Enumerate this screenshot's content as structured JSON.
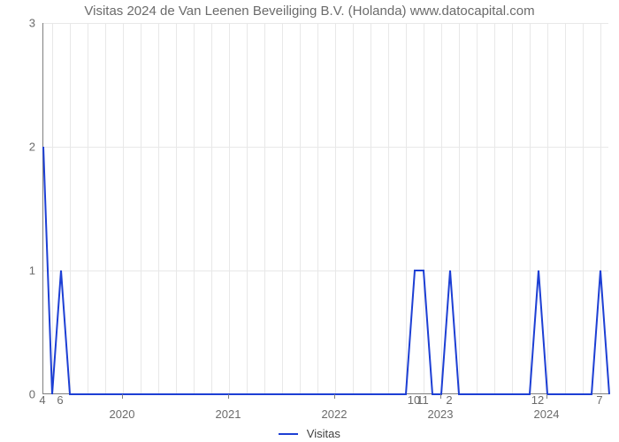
{
  "chart": {
    "type": "line",
    "title": "Visitas 2024 de Van Leenen Beveiliging B.V. (Holanda) www.datocapital.com",
    "title_fontsize": 15,
    "title_color": "#6b6b6b",
    "background_color": "#ffffff",
    "grid_color": "#e8e8e8",
    "axis_color": "#808080",
    "line_color": "#1d3fd4",
    "line_width": 2,
    "legend_label": "Visitas",
    "y": {
      "min": 0,
      "max": 3,
      "ticks": [
        0,
        1,
        2,
        3
      ],
      "label_fontsize": 13,
      "label_color": "#6b6b6b"
    },
    "x": {
      "min_month_index": 3,
      "max_month_index": 67,
      "year_ticks": [
        {
          "label": "2020",
          "month_index": 12
        },
        {
          "label": "2021",
          "month_index": 24
        },
        {
          "label": "2022",
          "month_index": 36
        },
        {
          "label": "2023",
          "month_index": 48
        },
        {
          "label": "2024",
          "month_index": 60
        }
      ],
      "month_labels": [
        {
          "label": "4",
          "month_index": 3
        },
        {
          "label": "6",
          "month_index": 5
        },
        {
          "label": "10",
          "month_index": 45
        },
        {
          "label": "11",
          "month_index": 46
        },
        {
          "label": "2",
          "month_index": 49
        },
        {
          "label": "12",
          "month_index": 59
        },
        {
          "label": "7",
          "month_index": 66
        }
      ],
      "minor_grid_step_months": 2
    },
    "series": [
      {
        "name": "Visitas",
        "color": "#1d3fd4",
        "points": [
          {
            "x": 3,
            "y": 2
          },
          {
            "x": 4,
            "y": 0
          },
          {
            "x": 5,
            "y": 1
          },
          {
            "x": 6,
            "y": 0
          },
          {
            "x": 44,
            "y": 0
          },
          {
            "x": 45,
            "y": 1
          },
          {
            "x": 46,
            "y": 1
          },
          {
            "x": 47,
            "y": 0
          },
          {
            "x": 48,
            "y": 0
          },
          {
            "x": 49,
            "y": 1
          },
          {
            "x": 50,
            "y": 0
          },
          {
            "x": 58,
            "y": 0
          },
          {
            "x": 59,
            "y": 1
          },
          {
            "x": 60,
            "y": 0
          },
          {
            "x": 65,
            "y": 0
          },
          {
            "x": 66,
            "y": 1
          },
          {
            "x": 67,
            "y": 0
          }
        ]
      }
    ]
  }
}
